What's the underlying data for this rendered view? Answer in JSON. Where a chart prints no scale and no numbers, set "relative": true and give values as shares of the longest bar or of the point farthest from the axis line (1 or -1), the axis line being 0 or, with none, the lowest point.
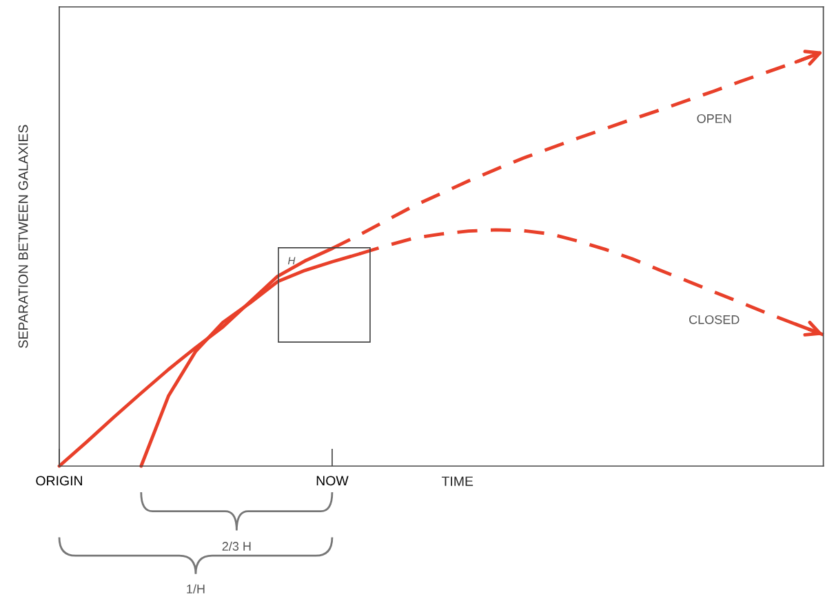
{
  "chart_data": {
    "type": "line",
    "relative": true,
    "xlabel": "TIME",
    "ylabel": "SEPARATION BETWEEN GALAXIES",
    "categories": [
      "ORIGIN",
      null,
      null,
      null,
      null,
      null,
      null,
      null,
      null,
      null,
      "NOW",
      null,
      null,
      null,
      null,
      null,
      null,
      null,
      null,
      null,
      null,
      null,
      null,
      null,
      null,
      null,
      null,
      null,
      null
    ],
    "tick_labels": "x",
    "grid": false,
    "legend": false,
    "marker": "none",
    "series": [
      {
        "color": "#e8402a",
        "line_style": "solid",
        "values": [
          0,
          0.058,
          0.118,
          0.176,
          0.233,
          0.286,
          0.336,
          0.397,
          0.458,
          0.495,
          0.525,
          null,
          null,
          null,
          null,
          null,
          null,
          null,
          null,
          null,
          null,
          null,
          null,
          null,
          null,
          null,
          null,
          null,
          null
        ]
      },
      {
        "name": "OPEN",
        "color": "#e8402a",
        "line_style": "dashed",
        "values": [
          null,
          null,
          null,
          null,
          null,
          null,
          null,
          null,
          null,
          null,
          0.525,
          0.558,
          0.593,
          0.628,
          0.658,
          0.688,
          0.716,
          0.743,
          0.767,
          0.791,
          0.814,
          0.837,
          0.859,
          0.882,
          0.905,
          0.929,
          0.952,
          0.975,
          1.0
        ]
      },
      {
        "color": "#e8402a",
        "line_style": "solid",
        "values": [
          null,
          null,
          null,
          0,
          0.169,
          0.277,
          0.347,
          0.394,
          0.445,
          0.472,
          0.493,
          0.512,
          null,
          null,
          null,
          null,
          null,
          null,
          null,
          null,
          null,
          null,
          null,
          null,
          null,
          null,
          null,
          null,
          null
        ]
      },
      {
        "name": "CLOSED",
        "color": "#e8402a",
        "line_style": "dashed",
        "values": [
          null,
          null,
          null,
          null,
          null,
          null,
          null,
          null,
          null,
          null,
          null,
          0.512,
          0.532,
          0.55,
          0.56,
          0.567,
          0.57,
          0.568,
          0.56,
          0.543,
          0.523,
          0.5,
          0.473,
          0.447,
          0.42,
          0.394,
          0.367,
          0.342,
          0.317
        ]
      }
    ],
    "annotations": [
      "H",
      "2/3 H",
      "1/H"
    ]
  }
}
